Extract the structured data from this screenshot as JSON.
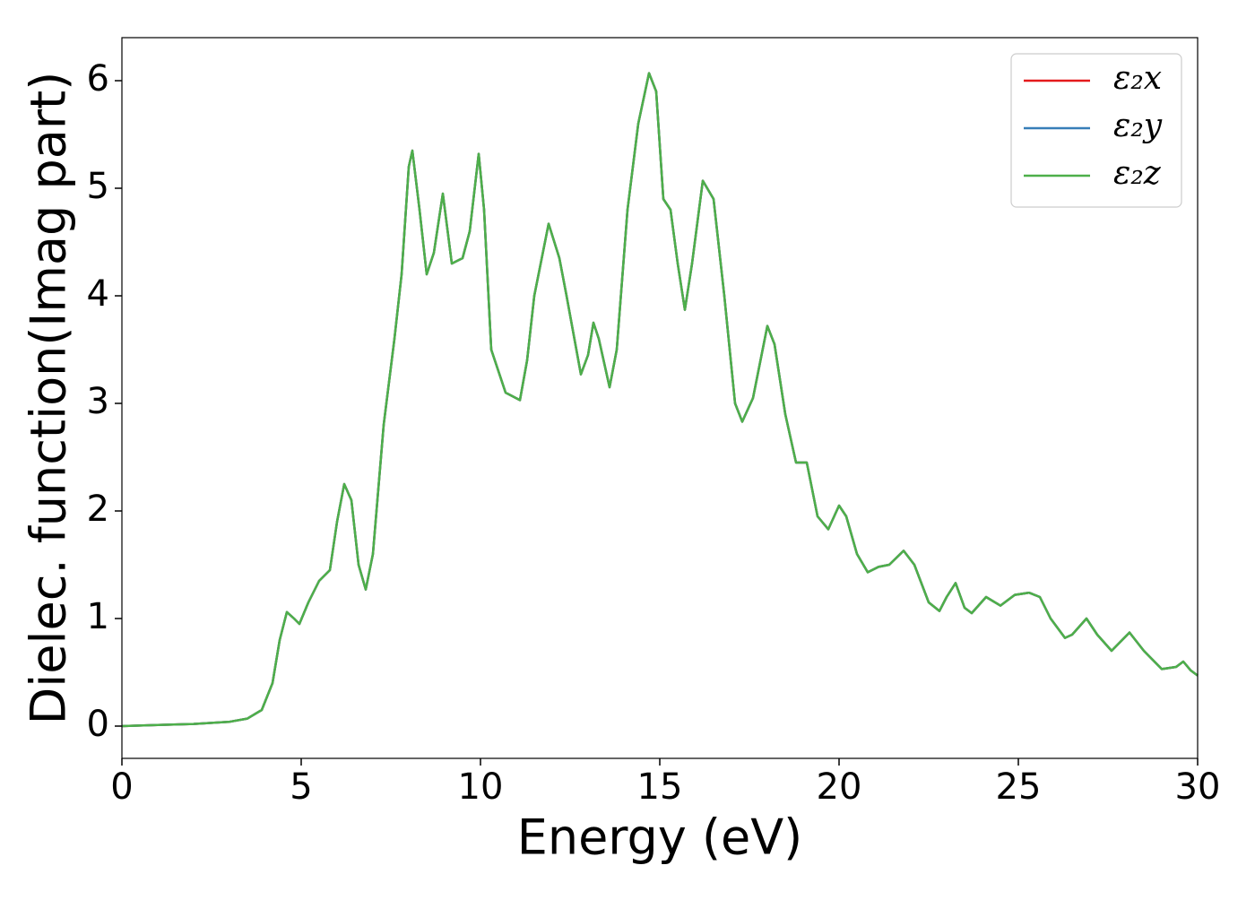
{
  "chart_data": {
    "type": "line",
    "xlabel": "Energy (eV)",
    "ylabel": "Dielec. function(Imag part)",
    "x": [
      0,
      1,
      2,
      3,
      3.5,
      3.9,
      4.2,
      4.4,
      4.6,
      4.8,
      4.95,
      5.2,
      5.5,
      5.8,
      6.0,
      6.2,
      6.4,
      6.6,
      6.8,
      7.0,
      7.3,
      7.6,
      7.8,
      8.0,
      8.1,
      8.3,
      8.5,
      8.7,
      8.95,
      9.2,
      9.5,
      9.7,
      9.95,
      10.1,
      10.3,
      10.7,
      11.1,
      11.3,
      11.5,
      11.9,
      12.2,
      12.4,
      12.8,
      13.0,
      13.15,
      13.3,
      13.6,
      13.8,
      14.1,
      14.4,
      14.7,
      14.9,
      15.1,
      15.3,
      15.5,
      15.7,
      15.9,
      16.2,
      16.5,
      16.8,
      17.1,
      17.3,
      17.6,
      18.0,
      18.2,
      18.5,
      18.8,
      19.1,
      19.4,
      19.7,
      20.0,
      20.2,
      20.5,
      20.8,
      21.1,
      21.4,
      21.8,
      22.1,
      22.5,
      22.8,
      23.0,
      23.25,
      23.5,
      23.7,
      24.1,
      24.5,
      24.9,
      25.3,
      25.6,
      25.9,
      26.3,
      26.5,
      26.9,
      27.2,
      27.6,
      28.1,
      28.5,
      29.0,
      29.4,
      29.6,
      29.8,
      30.0
    ],
    "series": [
      {
        "name": "ε₂x",
        "color": "#e41a1c",
        "values": [
          0.0,
          0.01,
          0.02,
          0.04,
          0.07,
          0.15,
          0.4,
          0.8,
          1.06,
          1.0,
          0.95,
          1.15,
          1.35,
          1.45,
          1.9,
          2.25,
          2.1,
          1.5,
          1.27,
          1.6,
          2.8,
          3.6,
          4.2,
          5.2,
          5.35,
          4.8,
          4.2,
          4.4,
          4.95,
          4.3,
          4.35,
          4.6,
          5.32,
          4.8,
          3.5,
          3.1,
          3.03,
          3.4,
          4.0,
          4.67,
          4.35,
          4.0,
          3.27,
          3.45,
          3.75,
          3.6,
          3.15,
          3.5,
          4.8,
          5.6,
          6.07,
          5.9,
          4.9,
          4.8,
          4.3,
          3.87,
          4.3,
          5.07,
          4.9,
          4.0,
          3.0,
          2.83,
          3.05,
          3.72,
          3.55,
          2.9,
          2.45,
          2.45,
          1.95,
          1.83,
          2.05,
          1.95,
          1.6,
          1.43,
          1.48,
          1.5,
          1.63,
          1.5,
          1.15,
          1.07,
          1.2,
          1.33,
          1.1,
          1.05,
          1.2,
          1.12,
          1.22,
          1.24,
          1.2,
          1.0,
          0.82,
          0.85,
          1.0,
          0.85,
          0.7,
          0.87,
          0.7,
          0.53,
          0.55,
          0.6,
          0.52,
          0.47
        ]
      },
      {
        "name": "ε₂y",
        "color": "#377eb8",
        "values": [
          0.0,
          0.01,
          0.02,
          0.04,
          0.07,
          0.15,
          0.4,
          0.8,
          1.06,
          1.0,
          0.95,
          1.15,
          1.35,
          1.45,
          1.9,
          2.25,
          2.1,
          1.5,
          1.27,
          1.6,
          2.8,
          3.6,
          4.2,
          5.2,
          5.35,
          4.8,
          4.2,
          4.4,
          4.95,
          4.3,
          4.35,
          4.6,
          5.32,
          4.8,
          3.5,
          3.1,
          3.03,
          3.4,
          4.0,
          4.67,
          4.35,
          4.0,
          3.27,
          3.45,
          3.75,
          3.6,
          3.15,
          3.5,
          4.8,
          5.6,
          6.07,
          5.9,
          4.9,
          4.8,
          4.3,
          3.87,
          4.3,
          5.07,
          4.9,
          4.0,
          3.0,
          2.83,
          3.05,
          3.72,
          3.55,
          2.9,
          2.45,
          2.45,
          1.95,
          1.83,
          2.05,
          1.95,
          1.6,
          1.43,
          1.48,
          1.5,
          1.63,
          1.5,
          1.15,
          1.07,
          1.2,
          1.33,
          1.1,
          1.05,
          1.2,
          1.12,
          1.22,
          1.24,
          1.2,
          1.0,
          0.82,
          0.85,
          1.0,
          0.85,
          0.7,
          0.87,
          0.7,
          0.53,
          0.55,
          0.6,
          0.52,
          0.47
        ]
      },
      {
        "name": "ε₂z",
        "color": "#4daf4a",
        "values": [
          0.0,
          0.01,
          0.02,
          0.04,
          0.07,
          0.15,
          0.4,
          0.8,
          1.06,
          1.0,
          0.95,
          1.15,
          1.35,
          1.45,
          1.9,
          2.25,
          2.1,
          1.5,
          1.27,
          1.6,
          2.8,
          3.6,
          4.2,
          5.2,
          5.35,
          4.8,
          4.2,
          4.4,
          4.95,
          4.3,
          4.35,
          4.6,
          5.32,
          4.8,
          3.5,
          3.1,
          3.03,
          3.4,
          4.0,
          4.67,
          4.35,
          4.0,
          3.27,
          3.45,
          3.75,
          3.6,
          3.15,
          3.5,
          4.8,
          5.6,
          6.07,
          5.9,
          4.9,
          4.8,
          4.3,
          3.87,
          4.3,
          5.07,
          4.9,
          4.0,
          3.0,
          2.83,
          3.05,
          3.72,
          3.55,
          2.9,
          2.45,
          2.45,
          1.95,
          1.83,
          2.05,
          1.95,
          1.6,
          1.43,
          1.48,
          1.5,
          1.63,
          1.5,
          1.15,
          1.07,
          1.2,
          1.33,
          1.1,
          1.05,
          1.2,
          1.12,
          1.22,
          1.24,
          1.2,
          1.0,
          0.82,
          0.85,
          1.0,
          0.85,
          0.7,
          0.87,
          0.7,
          0.53,
          0.55,
          0.6,
          0.52,
          0.47
        ]
      }
    ],
    "xlim": [
      0,
      30
    ],
    "xticks": [
      0,
      5,
      10,
      15,
      20,
      25,
      30
    ],
    "ylim": [
      -0.3,
      6.4
    ],
    "yticks": [
      0,
      1,
      2,
      3,
      4,
      5,
      6
    ],
    "grid": false,
    "legend": "upper right"
  }
}
